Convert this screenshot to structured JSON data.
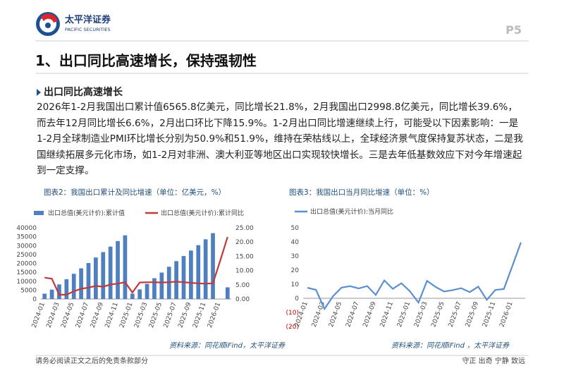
{
  "header": {
    "logo_cn": "太平洋证券",
    "logo_en": "PACIFIC SECURITIES",
    "page": "P5"
  },
  "title": "1、出口同比高速增长，保持强韧性",
  "section": {
    "heading": "出口同比高速增长",
    "paragraph": "2026年1-2月我国出口累计值6565.8亿美元，同比增长21.8%，2月我国出口2998.8亿美元，同比增长39.6%，而去年12月同比增长6.6%，2月出口环比下降15.9%。1-2月出口同比增速继续上行，可能受以下因素影响：一是1-2月全球制造业PMI环比增长分别为50.9%和51.9%，维持在荣枯线以上，全球经济景气度保持复苏状态，二是我国继续拓展多元化市场，如1-2月对非洲、澳大利亚等地区出口实现较快增长。三是去年低基数效应下对今年增速起到一定支撑。"
  },
  "chart_data": [
    {
      "type": "bar",
      "caption": "图表2：我国出口累计及同比增速（单位：亿美元，%）",
      "source": "资料来源：同花顺iFind，太平洋证券",
      "categories": [
        "2024-01",
        null,
        "2024-03",
        null,
        "2024-05",
        null,
        "2024-07",
        null,
        "2024-09",
        null,
        "2024-11",
        null,
        "2025-01",
        null,
        "2025-03",
        null,
        "2025-05",
        null,
        "2025-07",
        null,
        "2025-09",
        null,
        "2025-11",
        null,
        "2026-01",
        null
      ],
      "series": [
        {
          "name": "出口总值(美元计价):累计值",
          "type": "bar",
          "color": "#4f7fbf",
          "values": [
            3000,
            5280,
            8205,
            11129,
            14151,
            17223,
            20228,
            23313,
            26339,
            29430,
            32550,
            35772,
            3000,
            5399,
            8533,
            11685,
            14851,
            18107,
            21281,
            24125,
            27228,
            30240,
            33540,
            37000,
            null,
            6566
          ]
        },
        {
          "name": "出口总值(美元计价):累计同比",
          "type": "line",
          "axis": "y2",
          "color": "#c0393b",
          "values": [
            7.5,
            7.1,
            1.5,
            1.5,
            2.7,
            3.6,
            4.0,
            4.6,
            4.3,
            5.1,
            5.4,
            5.9,
            2.3,
            5.8,
            5.9,
            5.9,
            5.8,
            5.9,
            6.1,
            5.9,
            5.7,
            5.5,
            5.4,
            5.5,
            13.5,
            21.8
          ]
        }
      ],
      "ylim": [
        0,
        40000
      ],
      "yticks": [
        0,
        5000,
        10000,
        15000,
        20000,
        25000,
        30000,
        35000,
        40000
      ],
      "y2lim": [
        0,
        25
      ],
      "y2ticks": [
        {
          "value": 0,
          "label": "0.00"
        },
        {
          "value": 5,
          "label": "5.00"
        },
        {
          "value": 10,
          "label": "10.00"
        },
        {
          "value": 15,
          "label": "15.00"
        },
        {
          "value": 20,
          "label": "20.00"
        },
        {
          "value": 25,
          "label": "25.00"
        }
      ],
      "grid": false
    },
    {
      "type": "line",
      "caption": "图表3：我国出口当月同比增速（单位：%）",
      "source": "资料来源：同花顺iFind ，太平洋证券",
      "categories": [
        "2024-01",
        null,
        "2024-03",
        null,
        "2024-05",
        null,
        "2024-07",
        null,
        "2024-09",
        null,
        "2024-11",
        null,
        "2025-01",
        null,
        "2025-03",
        null,
        "2025-05",
        null,
        "2025-07",
        null,
        "2025-09",
        null,
        "2025-11",
        null,
        "2026-01",
        null
      ],
      "series": [
        {
          "name": "出口总值(美元计价):当月同比",
          "color": "#5b8fd0",
          "values": [
            7.5,
            6,
            -7.5,
            1.5,
            7.6,
            8.6,
            7,
            8.7,
            2.4,
            12.7,
            6.7,
            10.7,
            5,
            -3,
            12.4,
            8.1,
            4.8,
            5.8,
            7.2,
            4.4,
            8.3,
            -1.1,
            5.9,
            6.6,
            23,
            39.6
          ]
        }
      ],
      "ylim": [
        -20,
        50
      ],
      "yticks": [
        {
          "value": -20,
          "label": "(20)"
        },
        {
          "value": -10,
          "label": "(10)"
        },
        0,
        10,
        20,
        30,
        40,
        50
      ],
      "grid": false
    }
  ],
  "footer": {
    "disclaimer": "请务必阅读正文之后的免责条款部分",
    "motto": "守正 出奇 宁静 致远"
  }
}
